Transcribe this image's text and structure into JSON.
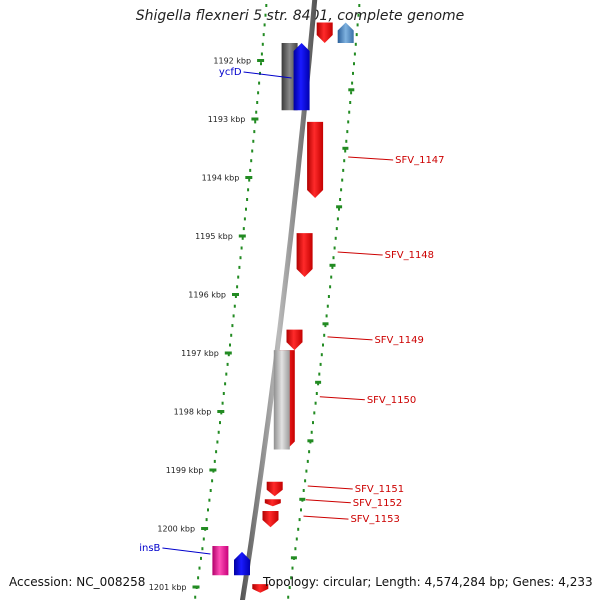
{
  "title": "Shigella flexneri 5 str. 8401, complete genome",
  "footer": {
    "accession": "Accession: NC_008258",
    "topology": "Topology: circular; Length: 4,574,284 bp; Genes: 4,233"
  },
  "ruler": {
    "ticks": [
      "1192 kbp",
      "1193 kbp",
      "1194 kbp",
      "1195 kbp",
      "1196 kbp",
      "1197 kbp",
      "1198 kbp",
      "1199 kbp",
      "1200 kbp",
      "1201 kbp"
    ]
  },
  "genes": [
    {
      "label": "",
      "start": 1191.35,
      "end": 1191.7,
      "strand": "reverse",
      "color": "#ee1111"
    },
    {
      "label": "",
      "start": 1191.35,
      "end": 1191.7,
      "strand": "forward",
      "color": "#4a88c8"
    },
    {
      "label": "",
      "start": 1191.7,
      "end": 1192.85,
      "strand": "none",
      "color": "#666666"
    },
    {
      "label": "ycfD",
      "start": 1191.7,
      "end": 1192.85,
      "strand": "forward",
      "color": "#0000ee"
    },
    {
      "label": "SFV_1147",
      "start": 1193.05,
      "end": 1194.35,
      "strand": "reverse",
      "color": "#ee1111"
    },
    {
      "label": "SFV_1148",
      "start": 1194.95,
      "end": 1195.7,
      "strand": "reverse",
      "color": "#ee1111"
    },
    {
      "label": "SFV_1149",
      "start": 1196.6,
      "end": 1196.95,
      "strand": "reverse",
      "color": "#ee1111"
    },
    {
      "label": "SFV_1150",
      "start": 1196.95,
      "end": 1198.65,
      "strand": "reverse",
      "color": "#ee1111"
    },
    {
      "label": "",
      "start": 1196.95,
      "end": 1198.65,
      "strand": "none",
      "color": "#aaaaaa"
    },
    {
      "label": "SFV_1151",
      "start": 1199.2,
      "end": 1199.45,
      "strand": "reverse",
      "color": "#ee1111"
    },
    {
      "label": "SFV_1152",
      "start": 1199.5,
      "end": 1199.62,
      "strand": "reverse",
      "color": "#ee1111"
    },
    {
      "label": "SFV_1153",
      "start": 1199.7,
      "end": 1199.98,
      "strand": "reverse",
      "color": "#ee1111"
    },
    {
      "label": "insB",
      "start": 1200.3,
      "end": 1200.8,
      "strand": "none",
      "color": "#ee1199"
    },
    {
      "label": "",
      "start": 1200.4,
      "end": 1200.8,
      "strand": "forward",
      "color": "#0000ee"
    },
    {
      "label": "",
      "start": 1200.95,
      "end": 1201.1,
      "strand": "reverse",
      "color": "#ee1111"
    }
  ]
}
